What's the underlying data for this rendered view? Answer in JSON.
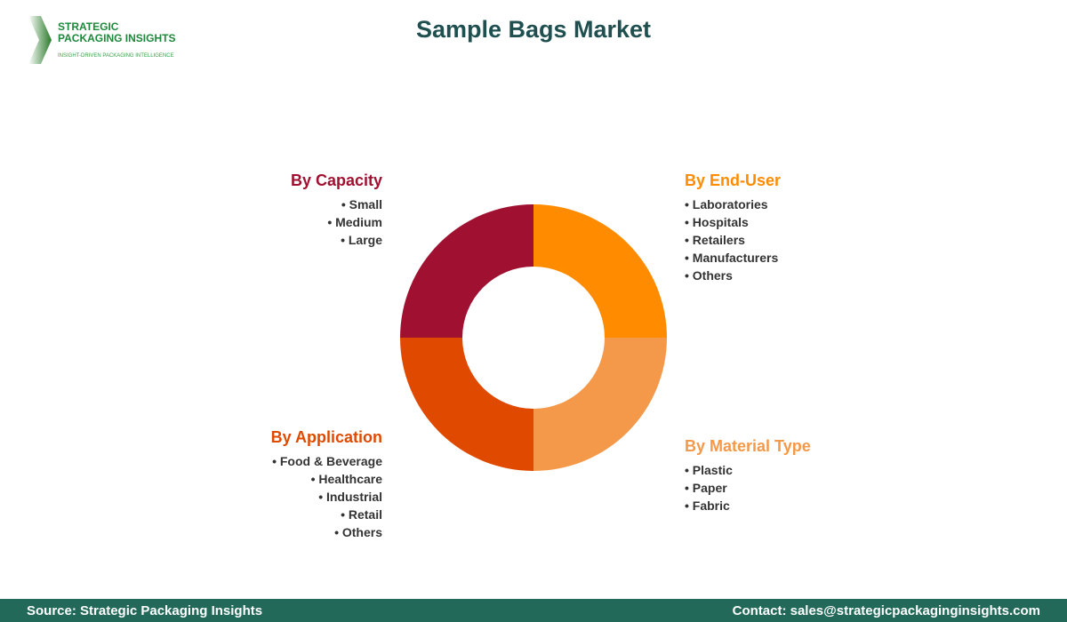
{
  "title": "Sample Bags Market",
  "logo": {
    "line1": "STRATEGIC",
    "line2": "PACKAGING INSIGHTS",
    "tagline": "INSIGHT-DRIVEN PACKAGING INTELLIGENCE"
  },
  "segments": [
    {
      "name": "By Capacity",
      "color": "#A01030",
      "items": [
        "Small",
        "Medium",
        "Large"
      ]
    },
    {
      "name": "By End-User",
      "color": "#FF8C00",
      "items": [
        "Laboratories",
        "Hospitals",
        "Retailers",
        "Manufacturers",
        "Others"
      ]
    },
    {
      "name": "By Application",
      "color": "#E04A00",
      "items": [
        "Food & Beverage",
        "Healthcare",
        "Industrial",
        "Retail",
        "Others"
      ]
    },
    {
      "name": "By Material Type",
      "color": "#F4994A",
      "items": [
        "Plastic",
        "Paper",
        "Fabric"
      ]
    }
  ],
  "footer": {
    "source": "Source: Strategic Packaging Insights",
    "contact": "Contact: sales@strategicpackaginginsights.com"
  }
}
